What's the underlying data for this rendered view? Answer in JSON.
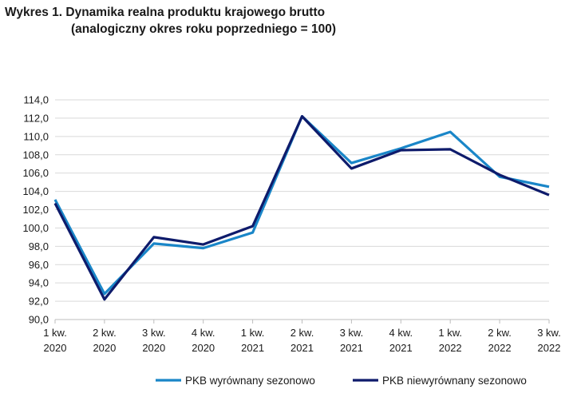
{
  "chart_data": {
    "type": "line",
    "title": "Wykres 1. Dynamika realna produktu krajowego brutto",
    "subtitle": "(analogiczny okres roku poprzedniego = 100)",
    "xlabel": "",
    "ylabel": "",
    "ylim": [
      90,
      114
    ],
    "ytick_step": 2,
    "yticks": [
      "90,0",
      "92,0",
      "94,0",
      "96,0",
      "98,0",
      "100,0",
      "102,0",
      "104,0",
      "106,0",
      "108,0",
      "110,0",
      "112,0",
      "114,0"
    ],
    "grid": true,
    "legend_position": "bottom",
    "categories": [
      [
        "1 kw.",
        "2020"
      ],
      [
        "2 kw.",
        "2020"
      ],
      [
        "3 kw.",
        "2020"
      ],
      [
        "4 kw.",
        "2020"
      ],
      [
        "1 kw.",
        "2021"
      ],
      [
        "2 kw.",
        "2021"
      ],
      [
        "3 kw.",
        "2021"
      ],
      [
        "4 kw.",
        "2021"
      ],
      [
        "1 kw.",
        "2022"
      ],
      [
        "2 kw.",
        "2022"
      ],
      [
        "3 kw.",
        "2022"
      ]
    ],
    "series": [
      {
        "name": "PKB wyrównany sezonowo",
        "color": "#1a86c8",
        "values": [
          103.1,
          92.8,
          98.3,
          97.8,
          99.5,
          112.2,
          107.1,
          108.7,
          110.5,
          105.6,
          104.5
        ]
      },
      {
        "name": "PKB niewyrównany sezonowo",
        "color": "#0e1b6b",
        "values": [
          102.7,
          92.2,
          99.0,
          98.2,
          100.2,
          112.2,
          106.5,
          108.5,
          108.6,
          105.8,
          103.6
        ]
      }
    ]
  }
}
